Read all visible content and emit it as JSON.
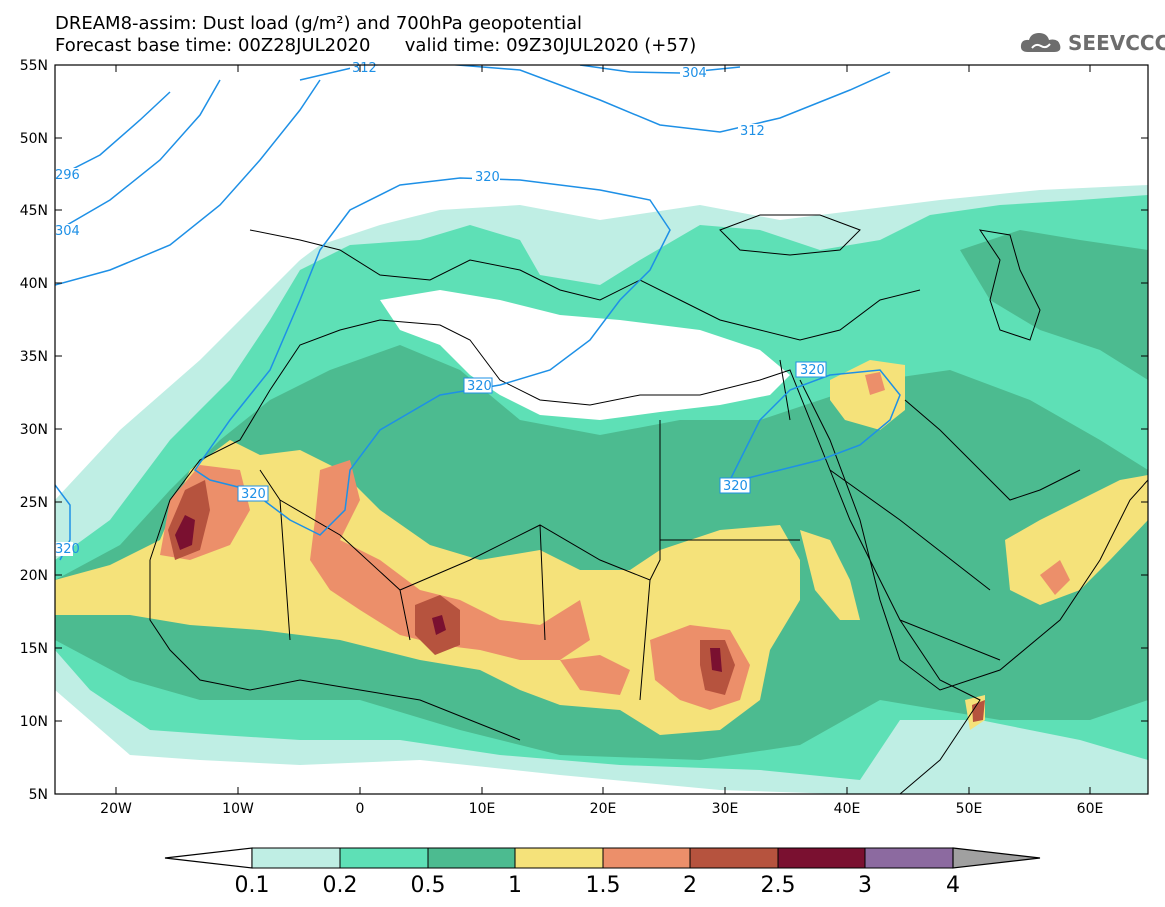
{
  "header": {
    "title": "DREAM8-assim: Dust load (g/m²) and 700hPa geopotential",
    "forecast_base": "Forecast base time: 00Z28JUL2020",
    "valid_time": "valid time: 09Z30JUL2020 (+57)"
  },
  "logo": {
    "text": "SEEVCCC",
    "icon": "cloud-icon"
  },
  "axes": {
    "lat_labels": [
      "55N",
      "50N",
      "45N",
      "40N",
      "35N",
      "30N",
      "25N",
      "20N",
      "15N",
      "10N",
      "5N"
    ],
    "lon_labels": [
      "20W",
      "10W",
      "0",
      "10E",
      "20E",
      "30E",
      "40E",
      "50E",
      "60E"
    ]
  },
  "colorbar": {
    "labels": [
      "0.1",
      "0.2",
      "0.5",
      "1",
      "1.5",
      "2",
      "2.5",
      "3",
      "4"
    ],
    "colors": [
      "#bfeee4",
      "#5ee0b6",
      "#4cbb90",
      "#f5e27a",
      "#ec8f6a",
      "#b6533e",
      "#7a1030",
      "#8c6aa0",
      "#a0a0a0"
    ]
  },
  "contours": {
    "labels": [
      "312",
      "304",
      "312",
      "296",
      "304",
      "320",
      "320",
      "320",
      "320",
      "320",
      "320"
    ]
  },
  "colors": {
    "contour": "#1e90e6",
    "coast": "#000000"
  }
}
